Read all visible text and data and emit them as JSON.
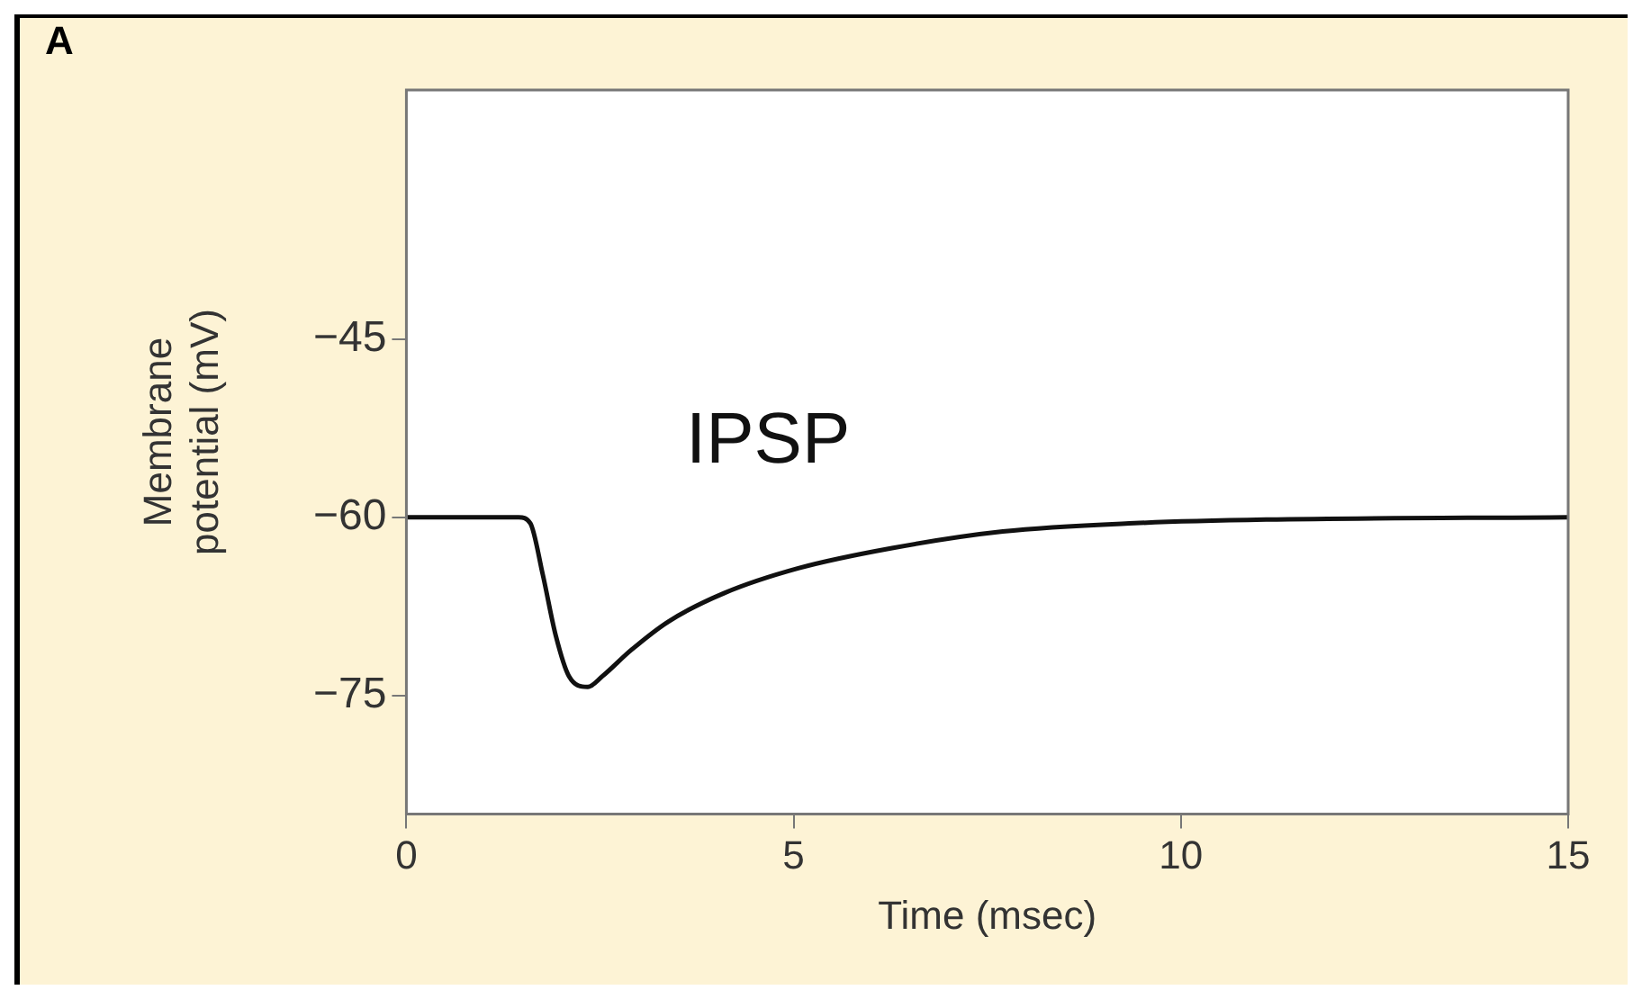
{
  "chart_data": {
    "type": "line",
    "xlabel": "Time (msec)",
    "ylabel": "Membrane potential (mV)",
    "annotations": [
      "A",
      "IPSP"
    ],
    "x": [
      0,
      1.45,
      1.6,
      1.76,
      1.93,
      2.1,
      2.34,
      2.53,
      2.9,
      3.38,
      4.1,
      5.06,
      6.27,
      7.7,
      9.4,
      11.1,
      15
    ],
    "series": [
      {
        "color": "#111111",
        "values": [
          -60,
          -60,
          -60.5,
          -64.8,
          -70,
          -73.4,
          -74.3,
          -73.4,
          -71.2,
          -68.8,
          -66.4,
          -64.3,
          -62.6,
          -61.2,
          -60.5,
          -60.2,
          -60
        ]
      }
    ],
    "xlim": [
      0,
      15
    ],
    "xticks": [
      0,
      5,
      10,
      15
    ],
    "ylim": [
      -85,
      -24
    ],
    "yticks": [
      -45,
      -60,
      -75
    ],
    "grid": false,
    "legend": false,
    "marker": "none",
    "line_style": "solid"
  }
}
